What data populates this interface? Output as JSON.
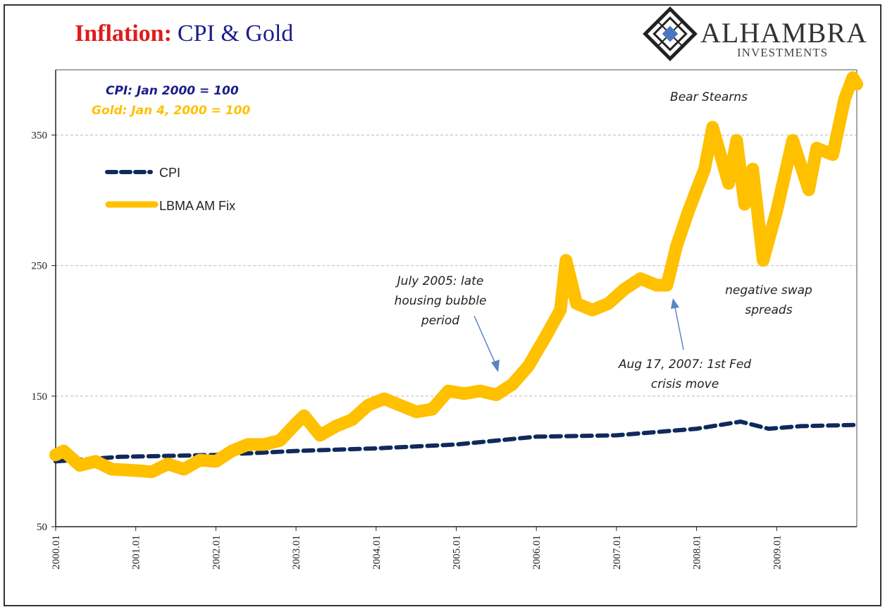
{
  "title": {
    "part1": "Inflation:",
    "part2": "CPI & Gold",
    "part1_color": "#e01b1b",
    "part2_color": "#1c1c8c"
  },
  "logo": {
    "name": "ALHAMBRA",
    "sub": "INVESTMENTS",
    "accent": "#4a78c0"
  },
  "chart_data": {
    "type": "line",
    "title": "Inflation: CPI & Gold",
    "xlabel": "",
    "ylabel": "",
    "ylim": [
      50,
      400
    ],
    "xlim": [
      2000.0,
      2010.0
    ],
    "grid": true,
    "legend_position": "top-left",
    "y_ticks": [
      "50",
      "150",
      "250",
      "350"
    ],
    "y_tick_values": [
      50,
      150,
      250,
      350
    ],
    "x_ticks": [
      "2000.01",
      "2001.01",
      "2002.01",
      "2003.01",
      "2004.01",
      "2005.01",
      "2006.01",
      "2007.01",
      "2008.01",
      "2009.01"
    ],
    "notes": {
      "cpi_base": "CPI: Jan 2000 = 100",
      "gold_base": "Gold: Jan 4, 2000 = 100"
    },
    "series": [
      {
        "name": "CPI",
        "color": "#0f2a5c",
        "style": "dashed",
        "x": [
          2000.0,
          2000.8,
          2002.0,
          2003.0,
          2004.0,
          2005.0,
          2006.0,
          2007.0,
          2008.0,
          2008.55,
          2008.9,
          2009.3,
          2010.0
        ],
        "y": [
          100,
          103.5,
          105,
          108,
          110,
          113,
          119,
          120,
          125,
          130.5,
          125,
          127,
          128
        ]
      },
      {
        "name": "LBMA AM Fix",
        "color": "#ffc000",
        "style": "solid",
        "x": [
          2000.0,
          2000.1,
          2000.3,
          2000.5,
          2000.7,
          2001.0,
          2001.2,
          2001.4,
          2001.6,
          2001.8,
          2002.0,
          2002.2,
          2002.4,
          2002.6,
          2002.8,
          2003.0,
          2003.1,
          2003.3,
          2003.5,
          2003.7,
          2003.9,
          2004.1,
          2004.3,
          2004.5,
          2004.7,
          2004.9,
          2005.1,
          2005.3,
          2005.5,
          2005.7,
          2005.9,
          2006.1,
          2006.3,
          2006.37,
          2006.5,
          2006.7,
          2006.9,
          2007.1,
          2007.3,
          2007.5,
          2007.63,
          2007.75,
          2007.9,
          2008.1,
          2008.2,
          2008.4,
          2008.5,
          2008.6,
          2008.7,
          2008.83,
          2009.0,
          2009.2,
          2009.4,
          2009.5,
          2009.7,
          2009.85,
          2009.95,
          2010.0
        ],
        "y": [
          105,
          108,
          97,
          100,
          94,
          93,
          92,
          98,
          94,
          101,
          100,
          108,
          113,
          113,
          116,
          129,
          135,
          120,
          127,
          132,
          143,
          148,
          143,
          138,
          140,
          154,
          152,
          154,
          151,
          159,
          173,
          194,
          216,
          254,
          221,
          216,
          221,
          232,
          240,
          235,
          235,
          265,
          292,
          324,
          356,
          313,
          346,
          297,
          324,
          254,
          292,
          346,
          308,
          340,
          335,
          378,
          394,
          389
        ]
      }
    ],
    "annotations": [
      {
        "lines": [
          "July 2005: late",
          "housing bubble",
          "period"
        ],
        "x": 2005.5
      },
      {
        "lines": [
          "Aug 17, 2007: 1st Fed",
          "crisis move"
        ],
        "x": 2007.63
      },
      {
        "lines": [
          "Bear Stearns"
        ],
        "x": 2008.2
      },
      {
        "lines": [
          "negative swap",
          "spreads"
        ],
        "x": 2008.83
      }
    ]
  }
}
